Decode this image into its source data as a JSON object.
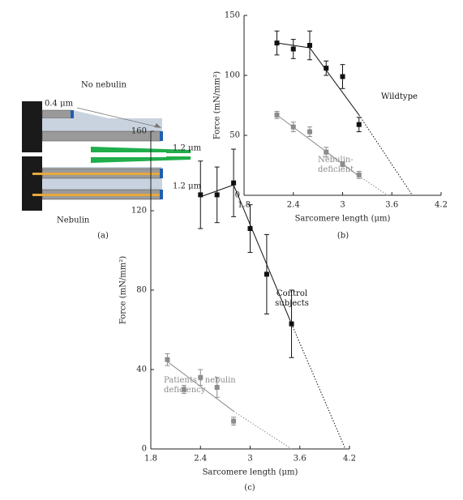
{
  "diagram": {
    "top_label": "No nebulin",
    "short_length": "0.4 μm",
    "top_length": "1.2 μm",
    "bottom_length": "1.2 μm",
    "bottom_label": "Nebulin",
    "caption": "(a)"
  },
  "chart_data": [
    {
      "type": "scatter",
      "caption": "(b)",
      "x_label": "Sarcomere length (μm)",
      "y_label": "Force (mN/mm²)",
      "xlim": [
        1.8,
        4.2
      ],
      "xticks": [
        1.8,
        2.4,
        3,
        3.6,
        4.2
      ],
      "ylim": [
        0,
        150
      ],
      "yticks": [
        0,
        50,
        100,
        150
      ],
      "series": [
        {
          "name": "Wildtype",
          "color": "#111111",
          "x": [
            2.2,
            2.4,
            2.6,
            2.8,
            3.0,
            3.2
          ],
          "values": [
            127,
            122,
            125,
            106,
            99,
            59
          ],
          "errors": [
            10,
            8,
            12,
            6,
            10,
            6
          ],
          "trend": {
            "x": [
              2.2,
              2.6,
              3.2
            ],
            "values": [
              127,
              123,
              67
            ]
          },
          "extrapolation": {
            "x": [
              3.2,
              3.85
            ],
            "values": [
              67,
              0
            ]
          }
        },
        {
          "name": "Nebulin-deficient",
          "color": "#8c8c8c",
          "x": [
            2.2,
            2.4,
            2.6,
            2.8,
            3.0,
            3.2
          ],
          "values": [
            67,
            57,
            53,
            36,
            26,
            17
          ],
          "errors": [
            3,
            4,
            4,
            4,
            2,
            3
          ],
          "trend": {
            "x": [
              2.2,
              3.2
            ],
            "values": [
              67,
              16
            ]
          },
          "extrapolation": {
            "x": [
              3.2,
              3.55
            ],
            "values": [
              16,
              0
            ]
          }
        }
      ]
    },
    {
      "type": "scatter",
      "caption": "(c)",
      "x_label": "Sarcomere length (μm)",
      "y_label": "Force (mN/mm²)",
      "xlim": [
        1.8,
        4.2
      ],
      "xticks": [
        1.8,
        2.4,
        3,
        3.6,
        4.2
      ],
      "ylim": [
        0,
        160
      ],
      "yticks": [
        0,
        40,
        80,
        120,
        160
      ],
      "series": [
        {
          "name": "Control subjects",
          "color": "#111111",
          "x": [
            2.4,
            2.6,
            2.8,
            3.0,
            3.2,
            3.5
          ],
          "values": [
            128,
            128,
            134,
            111,
            88,
            63
          ],
          "errors": [
            17,
            14,
            17,
            12,
            20,
            17
          ],
          "trend": {
            "x": [
              2.4,
              2.8,
              3.5
            ],
            "values": [
              127,
              133,
              63
            ]
          },
          "extrapolation": {
            "x": [
              3.5,
              4.15
            ],
            "values": [
              63,
              0
            ]
          }
        },
        {
          "name": "Patients - nebulin deficiency",
          "color": "#8c8c8c",
          "x": [
            2.0,
            2.2,
            2.4,
            2.6,
            2.8
          ],
          "values": [
            45,
            30,
            36,
            31,
            14
          ],
          "errors": [
            3,
            2,
            4,
            5,
            2
          ],
          "trend": {
            "x": [
              2.0,
              2.8
            ],
            "values": [
              44,
              19
            ]
          },
          "extrapolation": {
            "x": [
              2.8,
              3.5
            ],
            "values": [
              19,
              0
            ]
          }
        }
      ]
    }
  ]
}
